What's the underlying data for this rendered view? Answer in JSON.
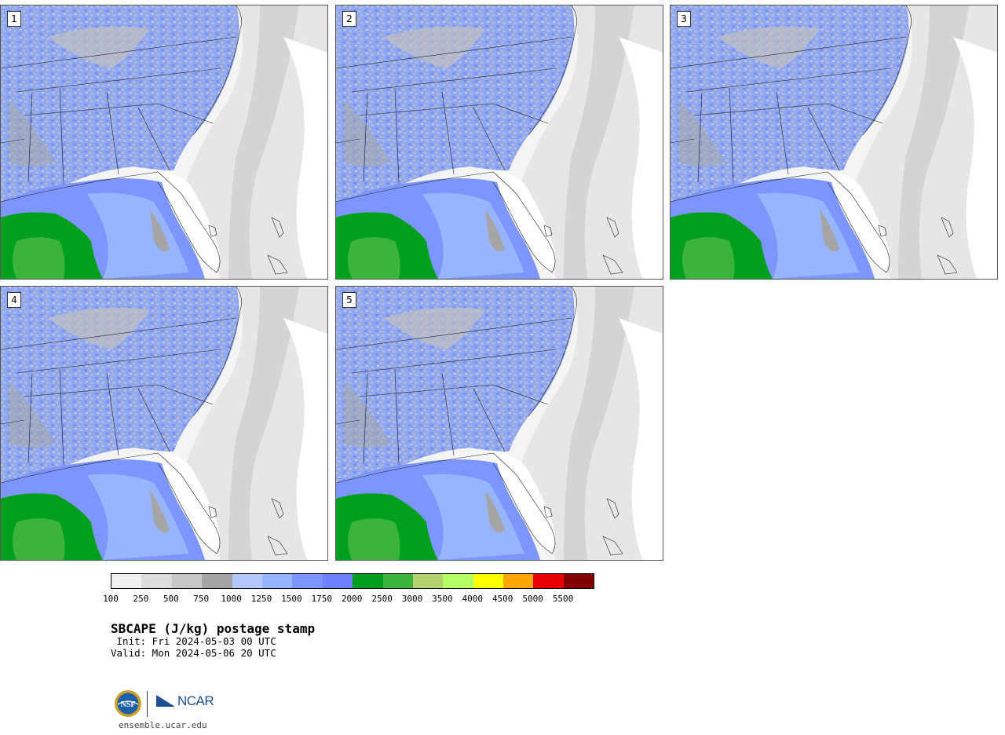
{
  "panels": [
    {
      "label": "1"
    },
    {
      "label": "2"
    },
    {
      "label": "3"
    },
    {
      "label": "4"
    },
    {
      "label": "5"
    }
  ],
  "colorbar": {
    "ticks": [
      "100",
      "250",
      "500",
      "750",
      "1000",
      "1250",
      "1500",
      "1750",
      "2000",
      "2500",
      "3000",
      "3500",
      "4000",
      "4500",
      "5000",
      "5500"
    ],
    "colors": [
      "#f0f0f0",
      "#dcdcdc",
      "#c8c8c8",
      "#a5a5a5",
      "#b4c8ff",
      "#96b4ff",
      "#7d96ff",
      "#6e82ff",
      "#00a01e",
      "#3cb43c",
      "#b4d26e",
      "#b4ff64",
      "#ffff00",
      "#ffa500",
      "#e60000",
      "#820000"
    ]
  },
  "title": "SBCAPE (J/kg) postage stamp",
  "init": " Init: Fri 2024-05-03 00 UTC",
  "valid": "Valid: Mon 2024-05-06 20 UTC",
  "logo": {
    "nsf": "NSF",
    "ncar": "NCAR"
  },
  "url": "ensemble.ucar.edu"
}
